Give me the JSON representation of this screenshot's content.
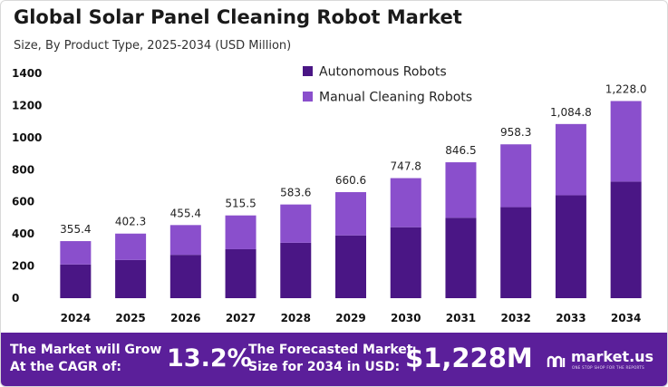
{
  "title": "Global Solar Panel Cleaning Robot Market",
  "subtitle": "Size, By Product Type, 2025-2034 (USD Million)",
  "colors": {
    "autonomous": "#4a1685",
    "manual": "#8a4fcc",
    "banner": "#5b1f9a"
  },
  "chart_data": {
    "type": "bar",
    "stacked": true,
    "categories": [
      "2024",
      "2025",
      "2026",
      "2027",
      "2028",
      "2029",
      "2030",
      "2031",
      "2032",
      "2033",
      "2034"
    ],
    "series": [
      {
        "name": "Autonomous Robots",
        "values": [
          210,
          238,
          270,
          305,
          345,
          391,
          442,
          501,
          567,
          641,
          726
        ]
      },
      {
        "name": "Manual Cleaning Robots",
        "values": [
          145.4,
          164.3,
          185.4,
          210.5,
          238.6,
          269.6,
          305.8,
          345.5,
          391.3,
          443.8,
          502.0
        ]
      }
    ],
    "totals": [
      355.4,
      402.3,
      455.4,
      515.5,
      583.6,
      660.6,
      747.8,
      846.5,
      958.3,
      1084.8,
      1228.0
    ],
    "total_labels": [
      "355.4",
      "402.3",
      "455.4",
      "515.5",
      "583.6",
      "660.6",
      "747.8",
      "846.5",
      "958.3",
      "1,084.8",
      "1,228.0"
    ],
    "yticks": [
      "0",
      "200",
      "400",
      "600",
      "800",
      "1000",
      "1200",
      "1400"
    ],
    "ylim": [
      0,
      1400
    ],
    "legend_position": "top-center",
    "grid": false
  },
  "banner": {
    "cagr_label_line1": "The Market will Grow",
    "cagr_label_line2": "At the CAGR of:",
    "cagr_value": "13.2%",
    "forecast_label_line1": "The Forecasted Market",
    "forecast_label_line2": "Size for 2034 in USD:",
    "forecast_value": "$1,228M",
    "brand": "market.us",
    "brand_tagline": "ONE STOP SHOP FOR THE REPORTS"
  }
}
